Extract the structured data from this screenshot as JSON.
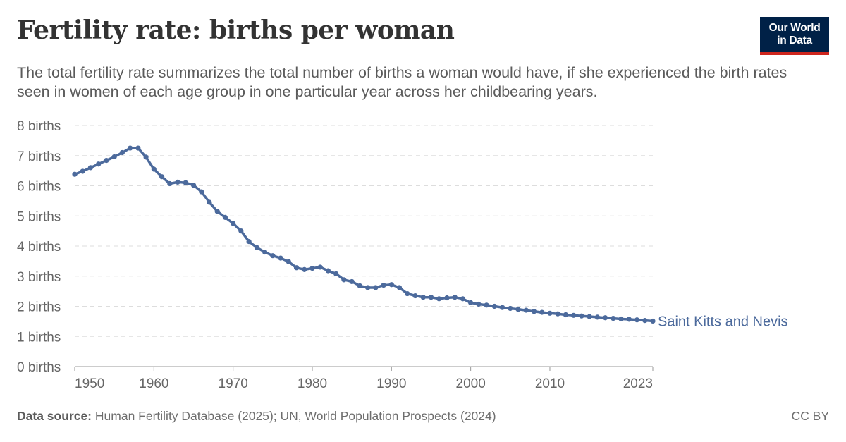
{
  "header": {
    "title": "Fertility rate: births per woman",
    "subtitle": "The total fertility rate summarizes the total number of births a woman would have, if she experienced the birth rates seen in women of each age group in one particular year across her childbearing years."
  },
  "logo": {
    "line1": "Our World",
    "line2": "in Data"
  },
  "footer": {
    "source_label": "Data source:",
    "source_text": "Human Fertility Database (2025); UN, World Population Prospects (2024)",
    "license": "CC BY"
  },
  "colors": {
    "series": "#4c6a9c",
    "grid": "#dddddd",
    "axis": "#999999",
    "text": "#666666"
  },
  "chart_data": {
    "type": "line",
    "title": "Fertility rate: births per woman",
    "xlim": [
      1950,
      2023
    ],
    "ylim": [
      0,
      8
    ],
    "x_ticks": [
      1950,
      1960,
      1970,
      1980,
      1990,
      2000,
      2010,
      2023
    ],
    "y_ticks": [
      0,
      1,
      2,
      3,
      4,
      5,
      6,
      7,
      8
    ],
    "y_tick_labels": [
      "0 births",
      "1 births",
      "2 births",
      "3 births",
      "4 births",
      "5 births",
      "6 births",
      "7 births",
      "8 births"
    ],
    "grid": "horizontal dashed",
    "series": [
      {
        "name": "Saint Kitts and Nevis",
        "x": [
          1950,
          1951,
          1952,
          1953,
          1954,
          1955,
          1956,
          1957,
          1958,
          1959,
          1960,
          1961,
          1962,
          1963,
          1964,
          1965,
          1966,
          1967,
          1968,
          1969,
          1970,
          1971,
          1972,
          1973,
          1974,
          1975,
          1976,
          1977,
          1978,
          1979,
          1980,
          1981,
          1982,
          1983,
          1984,
          1985,
          1986,
          1987,
          1988,
          1989,
          1990,
          1991,
          1992,
          1993,
          1994,
          1995,
          1996,
          1997,
          1998,
          1999,
          2000,
          2001,
          2002,
          2003,
          2004,
          2005,
          2006,
          2007,
          2008,
          2009,
          2010,
          2011,
          2012,
          2013,
          2014,
          2015,
          2016,
          2017,
          2018,
          2019,
          2020,
          2021,
          2022,
          2023
        ],
        "y": [
          6.38,
          6.48,
          6.6,
          6.72,
          6.84,
          6.96,
          7.1,
          7.25,
          7.25,
          6.95,
          6.55,
          6.3,
          6.07,
          6.12,
          6.1,
          6.02,
          5.8,
          5.45,
          5.15,
          4.95,
          4.75,
          4.5,
          4.15,
          3.95,
          3.8,
          3.68,
          3.6,
          3.48,
          3.28,
          3.22,
          3.26,
          3.3,
          3.18,
          3.08,
          2.88,
          2.82,
          2.68,
          2.62,
          2.62,
          2.7,
          2.72,
          2.62,
          2.42,
          2.35,
          2.3,
          2.3,
          2.25,
          2.28,
          2.3,
          2.25,
          2.12,
          2.07,
          2.04,
          2.0,
          1.96,
          1.93,
          1.9,
          1.87,
          1.83,
          1.8,
          1.77,
          1.75,
          1.72,
          1.7,
          1.68,
          1.66,
          1.64,
          1.62,
          1.6,
          1.58,
          1.57,
          1.55,
          1.53,
          1.51
        ]
      }
    ]
  }
}
